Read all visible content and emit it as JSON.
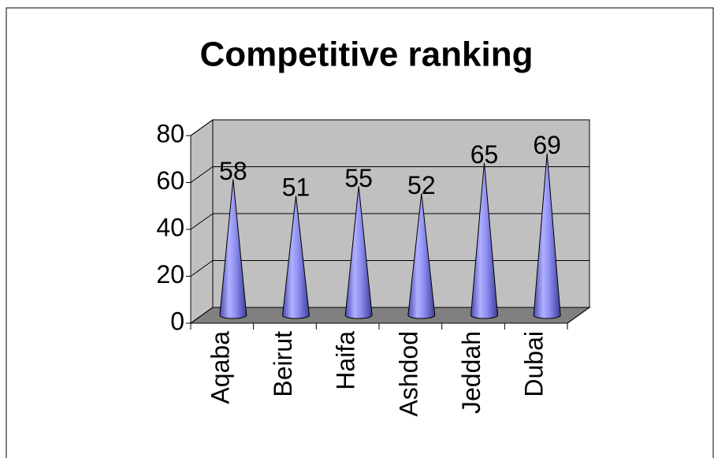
{
  "chart_data": {
    "type": "cone",
    "title": "Competitive ranking",
    "categories": [
      "Aqaba",
      "Beirut",
      "Haifa",
      "Ashdod",
      "Jeddah",
      "Dubai"
    ],
    "values": [
      58,
      51,
      55,
      52,
      65,
      69
    ],
    "color": "#8c8cf0",
    "ylim": [
      0,
      80
    ],
    "yticks": [
      0,
      20,
      40,
      60,
      80
    ],
    "grid": true
  }
}
